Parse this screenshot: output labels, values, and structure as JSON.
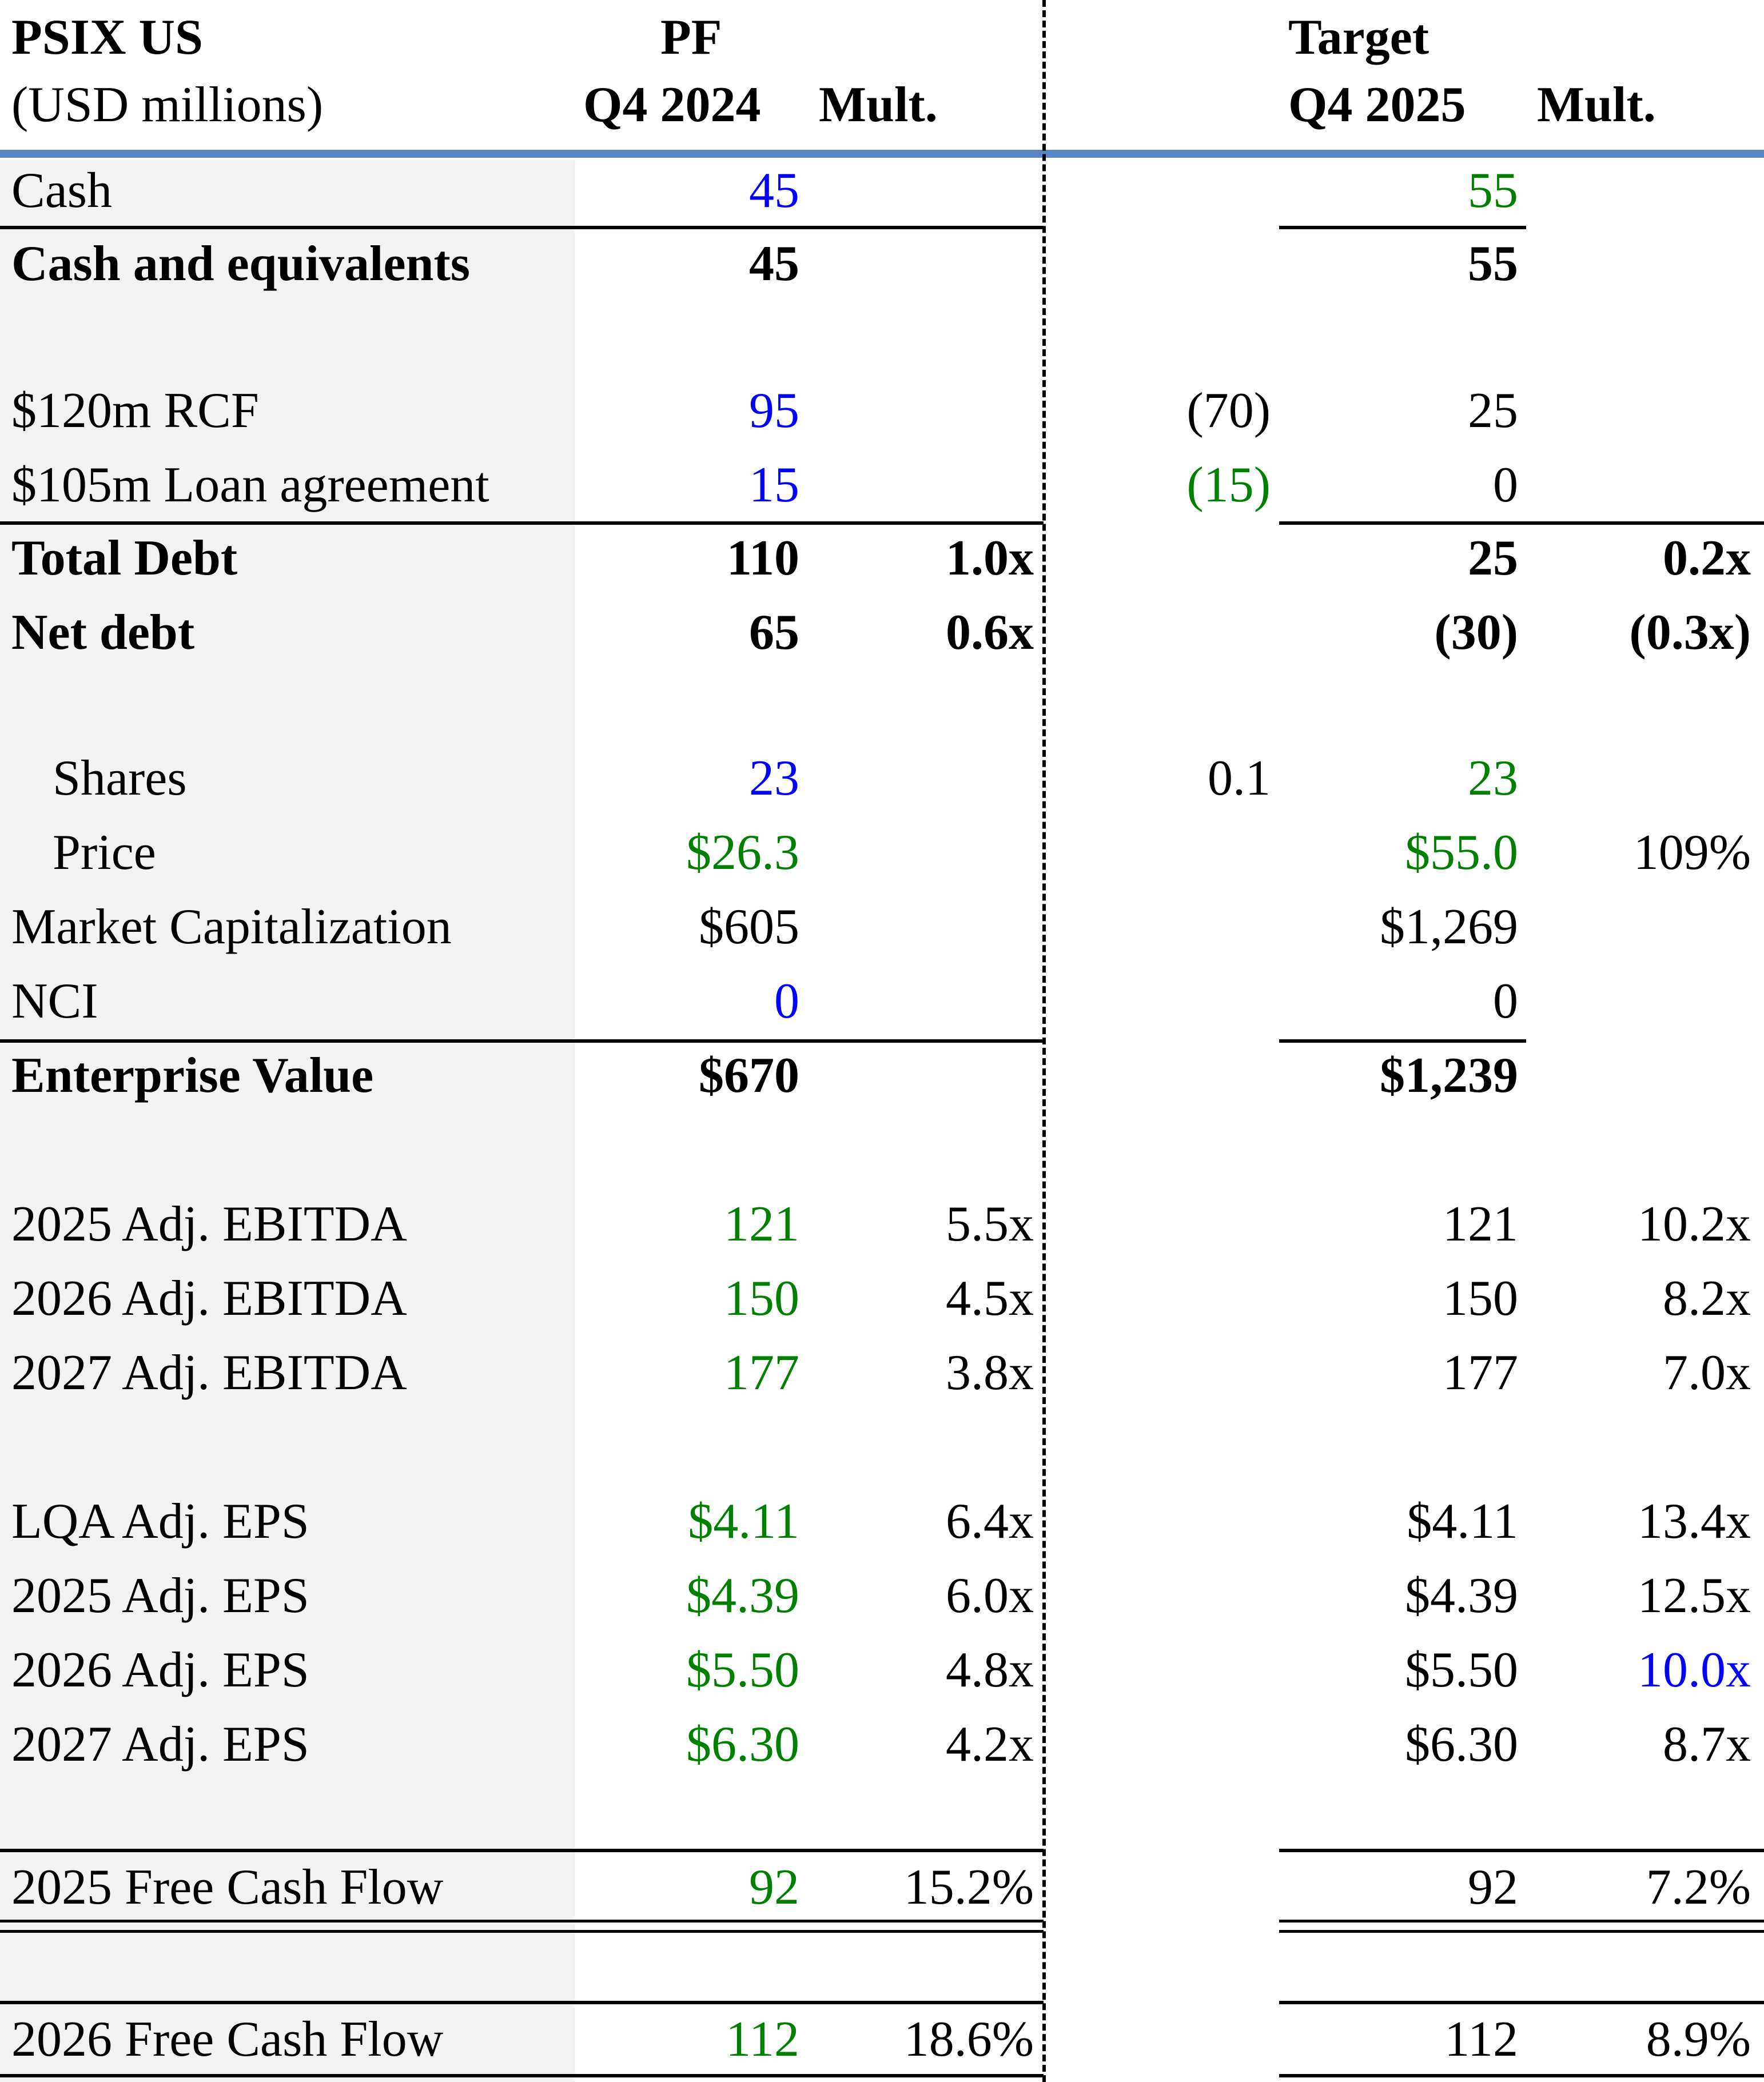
{
  "header": {
    "ticker": "PSIX US",
    "units": "(USD millions)",
    "pf_label": "PF",
    "pf_period": "Q4 2024",
    "pf_mult": "Mult.",
    "target_label": "Target",
    "target_period": "Q4 2025",
    "target_mult": "Mult."
  },
  "rows": [
    {
      "label": "Cash",
      "pf": "45",
      "pf_color": "#0000ff",
      "target": "55",
      "target_color": "#008000"
    },
    {
      "label": "Cash and equivalents",
      "bold": true,
      "pf": "45",
      "target": "55"
    },
    {
      "label": "$120m RCF",
      "pf": "95",
      "pf_color": "#0000ff",
      "adj": "(70)",
      "adj_color": "#000000",
      "target": "25"
    },
    {
      "label": "$105m Loan agreement",
      "pf": "15",
      "pf_color": "#0000ff",
      "adj": "(15)",
      "adj_color": "#008000",
      "target": "0"
    },
    {
      "label": "Total Debt",
      "bold": true,
      "pf": "110",
      "pf_mult": "1.0x",
      "target": "25",
      "target_mult": "0.2x"
    },
    {
      "label": "Net debt",
      "bold": true,
      "pf": "65",
      "pf_mult": "0.6x",
      "target": "(30)",
      "target_mult": "(0.3x)"
    },
    {
      "label": "Shares",
      "pf": "23",
      "pf_color": "#0000ff",
      "adj": "0.1",
      "adj_color": "#000000",
      "target": "23",
      "target_color": "#008000"
    },
    {
      "label": "Price",
      "pf": "$26.3",
      "pf_color": "#008000",
      "target": "$55.0",
      "target_color": "#008000",
      "target_mult": "109%"
    },
    {
      "label": "Market Capitalization",
      "pf": "$605",
      "target": "$1,269"
    },
    {
      "label": "NCI",
      "pf": "0",
      "pf_color": "#0000ff",
      "target": "0"
    },
    {
      "label": "Enterprise Value",
      "bold": true,
      "pf": "$670",
      "target": "$1,239"
    },
    {
      "label": "2025 Adj. EBITDA",
      "pf": "121",
      "pf_color": "#008000",
      "pf_mult": "5.5x",
      "target": "121",
      "target_mult": "10.2x"
    },
    {
      "label": "2026 Adj. EBITDA",
      "pf": "150",
      "pf_color": "#008000",
      "pf_mult": "4.5x",
      "target": "150",
      "target_mult": "8.2x"
    },
    {
      "label": "2027 Adj. EBITDA",
      "pf": "177",
      "pf_color": "#008000",
      "pf_mult": "3.8x",
      "target": "177",
      "target_mult": "7.0x"
    },
    {
      "label": "LQA Adj. EPS",
      "pf": "$4.11",
      "pf_color": "#008000",
      "pf_mult": "6.4x",
      "target": "$4.11",
      "target_mult": "13.4x"
    },
    {
      "label": "2025 Adj. EPS",
      "pf": "$4.39",
      "pf_color": "#008000",
      "pf_mult": "6.0x",
      "target": "$4.39",
      "target_mult": "12.5x"
    },
    {
      "label": "2026 Adj. EPS",
      "pf": "$5.50",
      "pf_color": "#008000",
      "pf_mult": "4.8x",
      "target": "$5.50",
      "target_mult": "10.0x",
      "target_mult_color": "#0000ff"
    },
    {
      "label": "2027 Adj. EPS",
      "pf": "$6.30",
      "pf_color": "#008000",
      "pf_mult": "4.2x",
      "target": "$6.30",
      "target_mult": "8.7x"
    },
    {
      "label": "2025 Free Cash Flow",
      "pf": "92",
      "pf_color": "#008000",
      "pf_mult": "15.2%",
      "target": "92",
      "target_mult": "7.2%"
    },
    {
      "label": "2026 Free Cash Flow",
      "pf": "112",
      "pf_color": "#008000",
      "pf_mult": "18.6%",
      "target": "112",
      "target_mult": "8.9%"
    }
  ]
}
